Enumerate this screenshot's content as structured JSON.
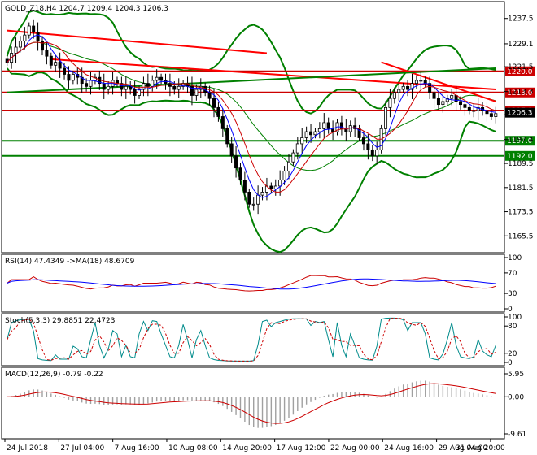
{
  "chart_data": {
    "type": "candlestick",
    "price_panel": {
      "header": "GOLD_Z18,H4  1204.7 1209.4 1204.3 1206.3",
      "ylim": [
        1161,
        1242
      ],
      "y_ticks": [
        "1237.5",
        "1229.1",
        "1221.5",
        "1213.3",
        "1205.6",
        "1197.4",
        "1189.5",
        "1181.5",
        "1173.5",
        "1165.5"
      ],
      "current_price": "1206.3",
      "candles_close": [
        1223,
        1226,
        1228,
        1230,
        1232,
        1235,
        1233,
        1230,
        1227,
        1225,
        1222,
        1223,
        1221,
        1219,
        1217,
        1219,
        1218,
        1216,
        1215,
        1217,
        1218,
        1216,
        1214,
        1215,
        1217,
        1216,
        1214,
        1215,
        1214,
        1212,
        1214,
        1216,
        1215,
        1217,
        1218,
        1217,
        1216,
        1215,
        1214,
        1215,
        1216,
        1215,
        1212,
        1214,
        1215,
        1213,
        1211,
        1208,
        1205,
        1201,
        1196,
        1192,
        1188,
        1184,
        1180,
        1176,
        1176,
        1179,
        1180,
        1182,
        1181,
        1182,
        1184,
        1187,
        1190,
        1193,
        1196,
        1198,
        1200,
        1199,
        1200,
        1201,
        1203,
        1201,
        1200,
        1203,
        1201,
        1200,
        1202,
        1201,
        1198,
        1196,
        1194,
        1192,
        1194,
        1201,
        1208,
        1211,
        1213,
        1214,
        1215,
        1214,
        1216,
        1217,
        1217,
        1216,
        1213,
        1211,
        1209,
        1210,
        1211,
        1212,
        1210,
        1209,
        1208,
        1207,
        1207,
        1208,
        1207,
        1206,
        1205,
        1206
      ],
      "levels": [
        {
          "label": "1220.0",
          "value": 1220.0,
          "color": "#cc0000"
        },
        {
          "label": "1213.0",
          "value": 1213.0,
          "color": "#cc0000"
        },
        {
          "label": "1207.0",
          "value": 1207.0,
          "color": "#cc0000"
        },
        {
          "label": "1197.0",
          "value": 1197.0,
          "color": "#008000"
        },
        {
          "label": "1192.0",
          "value": 1192.0,
          "color": "#008000"
        }
      ],
      "trendlines": [
        {
          "color": "#ff0000",
          "points": [
            [
              0,
              1233.5
            ],
            [
              59,
              1226
            ]
          ]
        },
        {
          "color": "#ff0000",
          "points": [
            [
              10,
              1224
            ],
            [
              111,
              1214
            ]
          ]
        },
        {
          "color": "#ff0000",
          "points": [
            [
              85,
              1223
            ],
            [
              111,
              1210
            ]
          ]
        },
        {
          "color": "#008000",
          "points": [
            [
              0,
              1213
            ],
            [
              111,
              1221
            ]
          ]
        }
      ]
    },
    "rsi_panel": {
      "header": "RSI(14) 47.4349  ->MA(18) 48.6709",
      "ylim": [
        0,
        100
      ],
      "y_ticks": [
        "100",
        "70",
        "30",
        "0"
      ]
    },
    "stoch_panel": {
      "header": "Stoch(5,3,3) 29.8851 22.4723",
      "ylim": [
        0,
        100
      ],
      "y_ticks": [
        "100",
        "80",
        "20",
        "0"
      ]
    },
    "macd_panel": {
      "header": "MACD(12,26,9) -0.79 -0.22",
      "ylim": [
        -9.61,
        5.95
      ],
      "y_ticks": [
        "5.95",
        "0.00",
        "-9.61"
      ]
    },
    "x_ticks": [
      "24 Jul 2018",
      "27 Jul 04:00",
      "7 Aug 16:00",
      "10 Aug 08:00",
      "14 Aug 20:00",
      "17 Aug 12:00",
      "22 Aug 00:00",
      "24 Aug 16:00",
      "29 Aug 04:00",
      "31 Aug 20:00"
    ]
  },
  "colors": {
    "up": "#000000",
    "down": "#000000",
    "bollinger": "#008000",
    "ma_fast": "#0000ff",
    "ma_slow": "#cc0000",
    "price_tag_bg": "#000000",
    "price_tag_fg": "#ffffff"
  }
}
